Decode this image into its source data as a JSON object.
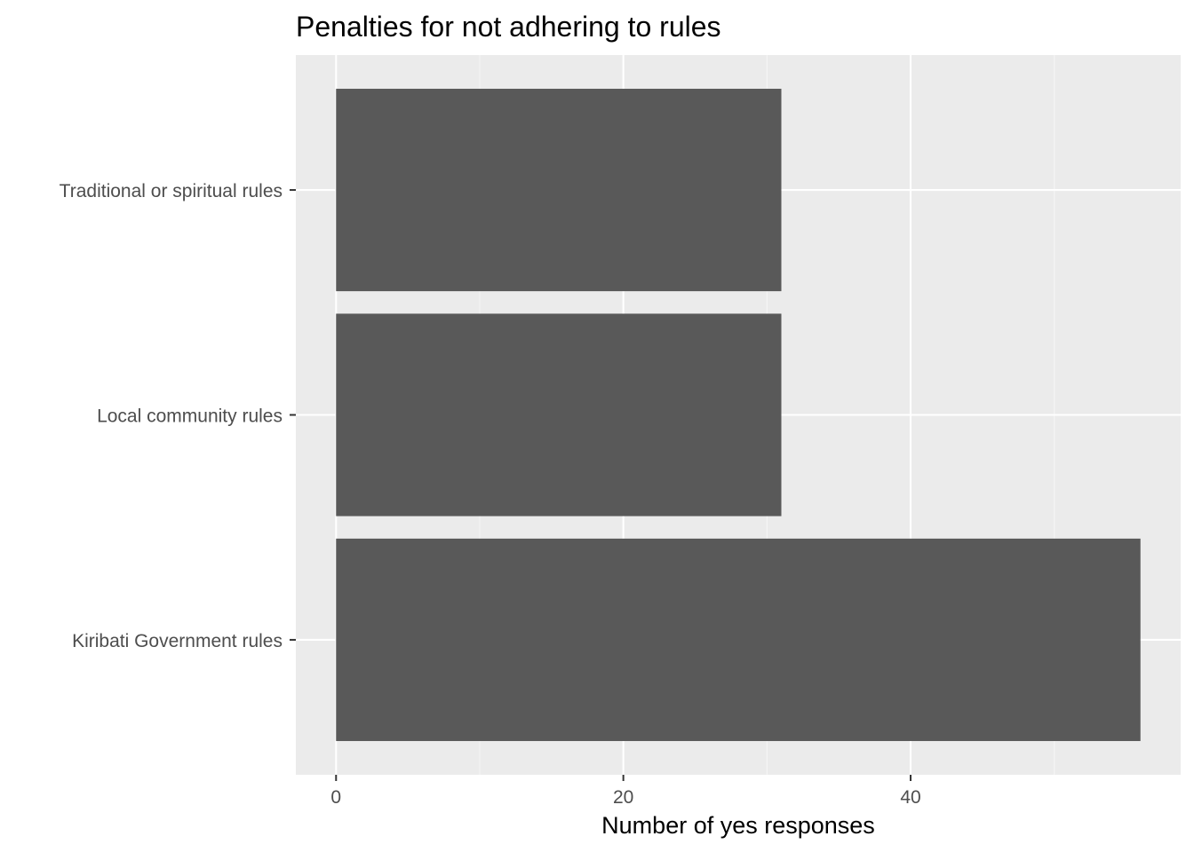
{
  "chart_data": {
    "type": "bar",
    "orientation": "horizontal",
    "title": "Penalties for not adhering to rules",
    "xlabel": "Number of yes responses",
    "ylabel": "",
    "categories": [
      "Kiribati Government rules",
      "Local community rules",
      "Traditional or spiritual rules"
    ],
    "values": [
      56,
      31,
      31
    ],
    "xlim": [
      -2.8,
      58.8
    ],
    "x_ticks": [
      0,
      20,
      40
    ],
    "x_tick_labels": [
      "0",
      "20",
      "40"
    ],
    "grid": true,
    "legend": "none",
    "colors": {
      "bar": "#595959",
      "panel_background": "#ebebeb",
      "grid_major": "#ffffff",
      "grid_minor": "#f5f5f5",
      "tick_text": "#4d4d4d",
      "tick_mark": "#333333"
    }
  }
}
